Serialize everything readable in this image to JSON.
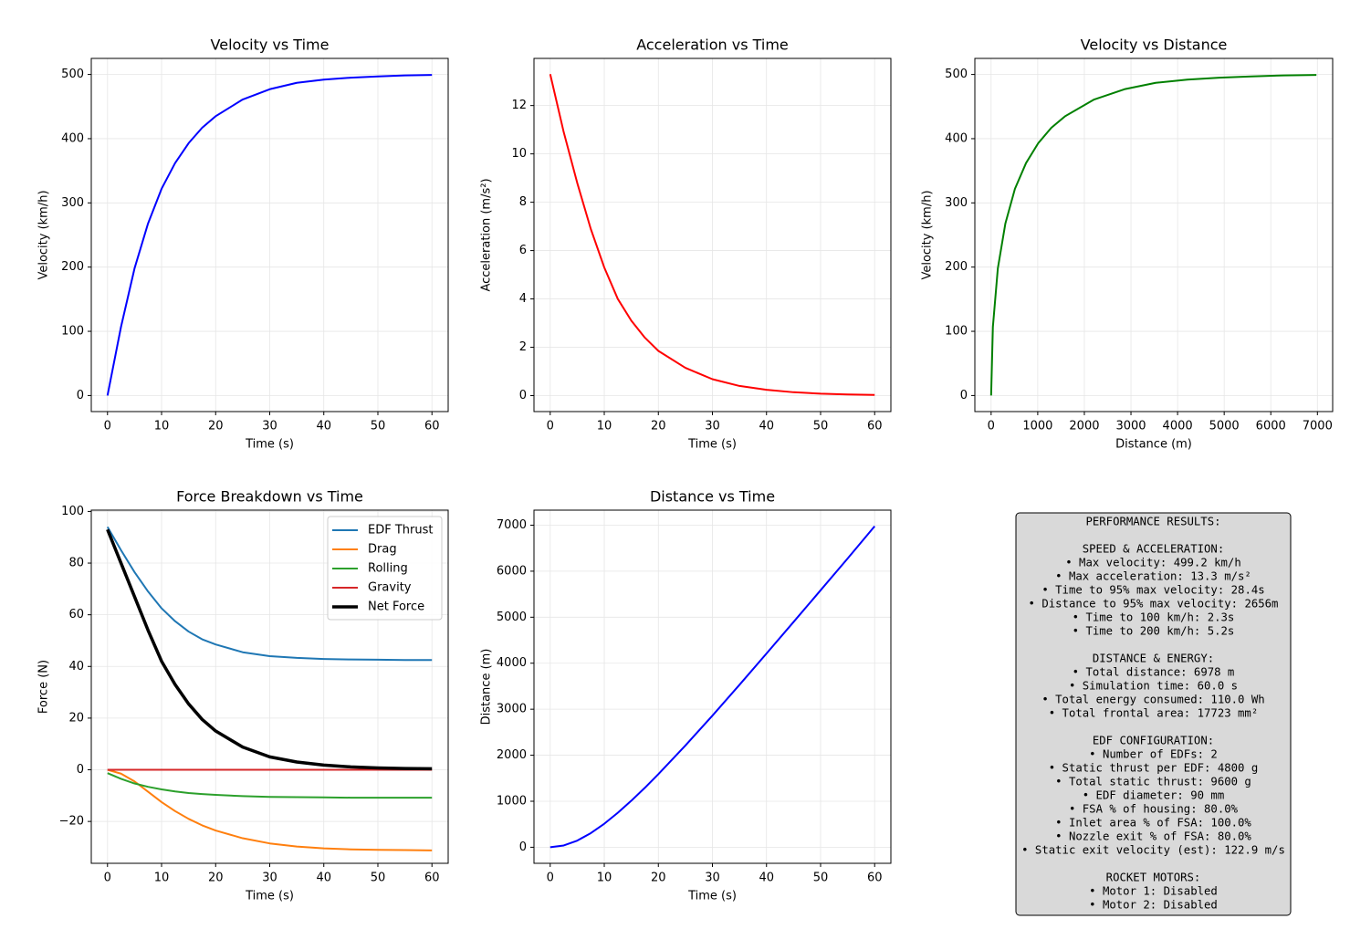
{
  "chart_data": [
    {
      "type": "line",
      "title": "Velocity vs Time",
      "x_label": "Time (s)",
      "y_label": "Velocity (km/h)",
      "x": [
        0,
        2.5,
        5,
        7.5,
        10,
        12.5,
        15,
        17.5,
        20,
        25,
        30,
        35,
        40,
        45,
        50,
        55,
        60
      ],
      "values": [
        0,
        107,
        198,
        268,
        322,
        362,
        393,
        417,
        435,
        461,
        477,
        487,
        492,
        495,
        497,
        498.5,
        499.2
      ],
      "color": "#0000ff",
      "xlim": [
        -3,
        63
      ],
      "ylim": [
        -25,
        525
      ],
      "xticks": [
        0,
        10,
        20,
        30,
        40,
        50,
        60
      ],
      "yticks": [
        0,
        100,
        200,
        300,
        400,
        500
      ],
      "grid": true
    },
    {
      "type": "line",
      "title": "Acceleration vs Time",
      "x_label": "Time (s)",
      "y_label": "Acceleration (m/s²)",
      "x": [
        0,
        2.5,
        5,
        7.5,
        10,
        12.5,
        15,
        17.5,
        20,
        25,
        30,
        35,
        40,
        45,
        50,
        55,
        60
      ],
      "values": [
        13.3,
        10.9,
        8.8,
        6.9,
        5.3,
        4.0,
        3.1,
        2.4,
        1.85,
        1.15,
        0.68,
        0.4,
        0.24,
        0.14,
        0.08,
        0.05,
        0.03
      ],
      "color": "#ff0000",
      "xlim": [
        -3,
        63
      ],
      "ylim": [
        -0.66,
        13.95
      ],
      "xticks": [
        0,
        10,
        20,
        30,
        40,
        50,
        60
      ],
      "yticks": [
        0,
        2,
        4,
        6,
        8,
        10,
        12
      ],
      "grid": true
    },
    {
      "type": "line",
      "title": "Velocity vs Distance",
      "x_label": "Distance (m)",
      "y_label": "Velocity (km/h)",
      "x": [
        0,
        38,
        144,
        306,
        511,
        749,
        1011,
        1292,
        1588,
        2210,
        2861,
        3530,
        4210,
        4896,
        5585,
        6276,
        6978
      ],
      "values": [
        0,
        107,
        198,
        268,
        322,
        362,
        393,
        417,
        435,
        461,
        477,
        487,
        492,
        495,
        497,
        498.5,
        499.2
      ],
      "color": "#008000",
      "xlim": [
        -349,
        7327
      ],
      "ylim": [
        -25,
        525
      ],
      "xticks": [
        0,
        1000,
        2000,
        3000,
        4000,
        5000,
        6000,
        7000
      ],
      "yticks": [
        0,
        100,
        200,
        300,
        400,
        500
      ],
      "grid": true
    },
    {
      "type": "line",
      "title": "Force Breakdown vs Time",
      "x_label": "Time (s)",
      "y_label": "Force (N)",
      "x": [
        0,
        2.5,
        5,
        7.5,
        10,
        12.5,
        15,
        17.5,
        20,
        25,
        30,
        35,
        40,
        45,
        50,
        55,
        60
      ],
      "series": [
        {
          "name": "EDF Thrust",
          "color": "#1f77b4",
          "linewidth": 2,
          "values": [
            94,
            85,
            76.5,
            69,
            62.5,
            57.5,
            53.5,
            50.5,
            48.5,
            45.5,
            44,
            43.3,
            42.9,
            42.7,
            42.6,
            42.5,
            42.5
          ]
        },
        {
          "name": "Drag",
          "color": "#ff7f0e",
          "linewidth": 2,
          "values": [
            0,
            -1.5,
            -4.5,
            -8.5,
            -12.5,
            -16,
            -19,
            -21.5,
            -23.5,
            -26.5,
            -28.5,
            -29.7,
            -30.4,
            -30.8,
            -31.0,
            -31.1,
            -31.2
          ]
        },
        {
          "name": "Rolling",
          "color": "#2ca02c",
          "linewidth": 2,
          "values": [
            -1.3,
            -3.5,
            -5.3,
            -6.6,
            -7.6,
            -8.4,
            -9.0,
            -9.4,
            -9.7,
            -10.2,
            -10.5,
            -10.6,
            -10.7,
            -10.8,
            -10.8,
            -10.8,
            -10.8
          ]
        },
        {
          "name": "Gravity",
          "color": "#d62728",
          "linewidth": 2,
          "values": [
            0,
            0,
            0,
            0,
            0,
            0,
            0,
            0,
            0,
            0,
            0,
            0,
            0,
            0,
            0,
            0,
            0
          ]
        },
        {
          "name": "Net Force",
          "color": "#000000",
          "linewidth": 3.5,
          "values": [
            93,
            80,
            67,
            54,
            42,
            33,
            25.5,
            19.5,
            15,
            8.8,
            5,
            3,
            1.8,
            1.1,
            0.7,
            0.5,
            0.4
          ]
        }
      ],
      "xlim": [
        -3,
        63
      ],
      "ylim": [
        -36.2,
        100.5
      ],
      "xticks": [
        0,
        10,
        20,
        30,
        40,
        50,
        60
      ],
      "yticks": [
        {
          "value": -20,
          "label": "−20"
        },
        0,
        20,
        40,
        60,
        80,
        100
      ],
      "grid": true,
      "legend": "upper right"
    },
    {
      "type": "line",
      "title": "Distance vs Time",
      "x_label": "Time (s)",
      "y_label": "Distance (m)",
      "x": [
        0,
        2.5,
        5,
        7.5,
        10,
        12.5,
        15,
        17.5,
        20,
        25,
        30,
        35,
        40,
        45,
        50,
        55,
        60
      ],
      "values": [
        0,
        38,
        144,
        306,
        511,
        749,
        1011,
        1292,
        1588,
        2210,
        2861,
        3530,
        4210,
        4896,
        5585,
        6276,
        6978
      ],
      "color": "#0000ff",
      "xlim": [
        -3,
        63
      ],
      "ylim": [
        -349,
        7327
      ],
      "xticks": [
        0,
        10,
        20,
        30,
        40,
        50,
        60
      ],
      "yticks": [
        0,
        1000,
        2000,
        3000,
        4000,
        5000,
        6000,
        7000
      ],
      "grid": true
    }
  ],
  "results_panel": {
    "title": "PERFORMANCE RESULTS:",
    "sections": [
      {
        "heading": "SPEED & ACCELERATION:",
        "items": [
          "• Max velocity: 499.2 km/h",
          "• Max acceleration: 13.3 m/s²",
          "• Time to 95% max velocity: 28.4s",
          "• Distance to 95% max velocity: 2656m",
          "• Time to 100 km/h: 2.3s",
          "• Time to 200 km/h: 5.2s"
        ]
      },
      {
        "heading": "DISTANCE & ENERGY:",
        "items": [
          "• Total distance: 6978 m",
          "• Simulation time: 60.0 s",
          "• Total energy consumed: 110.0 Wh",
          "• Total frontal area: 17723 mm²"
        ]
      },
      {
        "heading": "EDF CONFIGURATION:",
        "items": [
          "• Number of EDFs: 2",
          "• Static thrust per EDF: 4800 g",
          "• Total static thrust: 9600 g",
          "• EDF diameter: 90 mm",
          "• FSA % of housing: 80.0%",
          "• Inlet area % of FSA: 100.0%",
          "• Nozzle exit % of FSA: 80.0%",
          "• Static exit velocity (est): 122.9 m/s"
        ]
      },
      {
        "heading": "ROCKET MOTORS:",
        "items": [
          "• Motor 1: Disabled",
          "• Motor 2: Disabled"
        ]
      }
    ]
  }
}
